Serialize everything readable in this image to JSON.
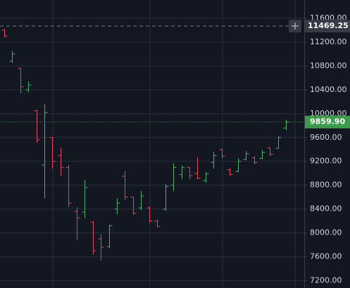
{
  "chart_data": {
    "type": "ohlc",
    "categories": [
      null,
      null,
      null,
      null,
      null,
      null,
      null,
      null,
      null,
      null,
      null,
      null,
      null,
      null,
      null,
      null,
      null,
      null,
      null,
      null,
      null,
      null,
      null,
      null,
      null,
      null,
      null,
      null,
      null,
      null,
      null,
      null,
      null,
      null,
      null,
      null
    ],
    "open": [
      11400,
      10880,
      10760,
      10400,
      10050,
      9140,
      9600,
      9300,
      9100,
      8360,
      8350,
      8180,
      7900,
      7770,
      8400,
      8950,
      8600,
      8420,
      8420,
      8200,
      8400,
      8800,
      8980,
      9100,
      9000,
      8880,
      9180,
      9400,
      9060,
      9030,
      9230,
      9260,
      9250,
      9430,
      9420,
      9760
    ],
    "high": [
      11420,
      11050,
      10770,
      10540,
      10060,
      10160,
      9610,
      9430,
      9140,
      8430,
      8890,
      8200,
      7980,
      8140,
      8580,
      9040,
      8610,
      8700,
      8440,
      8230,
      8820,
      9170,
      9130,
      9100,
      9270,
      9020,
      9360,
      9410,
      9080,
      9250,
      9370,
      9290,
      9390,
      9430,
      9620,
      9900
    ],
    "low": [
      11280,
      10850,
      10340,
      10360,
      9510,
      8580,
      9080,
      8960,
      8430,
      7880,
      8250,
      7640,
      7540,
      7750,
      8310,
      8550,
      8300,
      8380,
      8170,
      8090,
      8370,
      8700,
      8900,
      8900,
      8900,
      8840,
      9080,
      9250,
      8960,
      9020,
      9220,
      9150,
      9240,
      9290,
      9410,
      9720
    ],
    "close": [
      11300,
      11000,
      10450,
      10480,
      9560,
      10020,
      9200,
      9100,
      8500,
      8250,
      8760,
      7700,
      7760,
      8120,
      8500,
      8600,
      8330,
      8620,
      8200,
      8110,
      8780,
      9100,
      9100,
      8960,
      8920,
      8990,
      9300,
      9290,
      8980,
      9200,
      9330,
      9180,
      9350,
      9320,
      9600,
      9859.9
    ],
    "up_color": "#4caf6a",
    "down_color": "#e0455a",
    "ylim": [
      7077,
      11906
    ],
    "yticks": [
      {
        "value": 7200,
        "label": "7200.00"
      },
      {
        "value": 7600,
        "label": "7600.00"
      },
      {
        "value": 8000,
        "label": "8000.00"
      },
      {
        "value": 8400,
        "label": "8400.00"
      },
      {
        "value": 8800,
        "label": "8800.00"
      },
      {
        "value": 9200,
        "label": "9200.00"
      },
      {
        "value": 9600,
        "label": "9600.00"
      },
      {
        "value": 10000,
        "label": "10000.00"
      },
      {
        "value": 10400,
        "label": "10400.00"
      },
      {
        "value": 10800,
        "label": "10800.00"
      },
      {
        "value": 11200,
        "label": "11200.00"
      },
      {
        "value": 11600,
        "label": "11600.00"
      }
    ],
    "grid": true,
    "price_line": {
      "value": 9859.9,
      "label": "9859.90",
      "color": "#3e9a4c"
    },
    "crosshair": {
      "value": 11469.25,
      "label": "11469.25"
    }
  }
}
